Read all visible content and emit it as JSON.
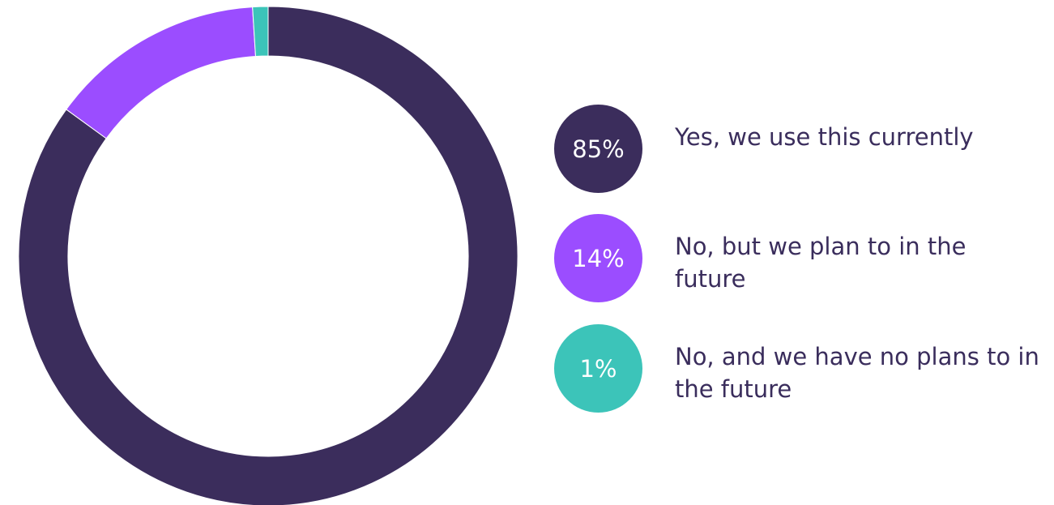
{
  "chart_data": {
    "type": "pie",
    "variant": "donut",
    "slices": [
      {
        "label": "Yes, we use this currently",
        "value": 85,
        "display": "85%",
        "color": "#3b2d5c"
      },
      {
        "label": "No, but we plan to in the future",
        "value": 14,
        "display": "14%",
        "color": "#9b4dff"
      },
      {
        "label": "No, and we have no plans to in the future",
        "value": 1,
        "display": "1%",
        "color": "#3cc4b9"
      }
    ],
    "legend_position": "right"
  }
}
